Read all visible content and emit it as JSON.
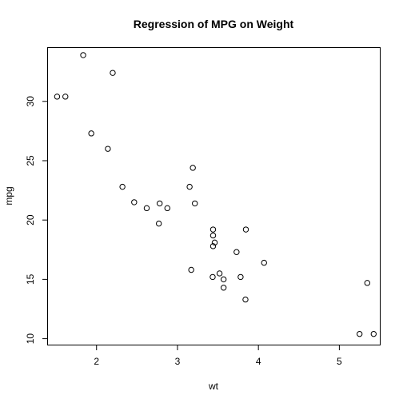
{
  "chart_data": {
    "type": "scatter",
    "title": "Regression of MPG on Weight",
    "xlabel": "wt",
    "ylabel": "mpg",
    "xlim": [
      1.4,
      5.5
    ],
    "ylim": [
      9.5,
      34.5
    ],
    "xticks": [
      2,
      3,
      4,
      5
    ],
    "yticks": [
      10,
      15,
      20,
      25,
      30
    ],
    "grid": false,
    "legend": "none",
    "marker": "open-circle",
    "points": [
      {
        "x": 1.513,
        "y": 30.4
      },
      {
        "x": 1.615,
        "y": 30.4
      },
      {
        "x": 1.835,
        "y": 33.9
      },
      {
        "x": 1.935,
        "y": 27.3
      },
      {
        "x": 2.14,
        "y": 26.0
      },
      {
        "x": 2.2,
        "y": 32.4
      },
      {
        "x": 2.32,
        "y": 22.8
      },
      {
        "x": 2.465,
        "y": 21.5
      },
      {
        "x": 2.62,
        "y": 21.0
      },
      {
        "x": 2.77,
        "y": 19.7
      },
      {
        "x": 2.78,
        "y": 21.4
      },
      {
        "x": 2.875,
        "y": 21.0
      },
      {
        "x": 3.15,
        "y": 22.8
      },
      {
        "x": 3.17,
        "y": 15.8
      },
      {
        "x": 3.19,
        "y": 24.4
      },
      {
        "x": 3.215,
        "y": 21.4
      },
      {
        "x": 3.435,
        "y": 15.2
      },
      {
        "x": 3.44,
        "y": 18.7
      },
      {
        "x": 3.44,
        "y": 19.2
      },
      {
        "x": 3.44,
        "y": 17.8
      },
      {
        "x": 3.46,
        "y": 18.1
      },
      {
        "x": 3.52,
        "y": 15.5
      },
      {
        "x": 3.57,
        "y": 15.0
      },
      {
        "x": 3.57,
        "y": 14.3
      },
      {
        "x": 3.73,
        "y": 17.3
      },
      {
        "x": 3.78,
        "y": 15.2
      },
      {
        "x": 3.84,
        "y": 13.3
      },
      {
        "x": 3.845,
        "y": 19.2
      },
      {
        "x": 4.07,
        "y": 16.4
      },
      {
        "x": 5.25,
        "y": 10.4
      },
      {
        "x": 5.345,
        "y": 14.7
      },
      {
        "x": 5.424,
        "y": 10.4
      }
    ]
  }
}
